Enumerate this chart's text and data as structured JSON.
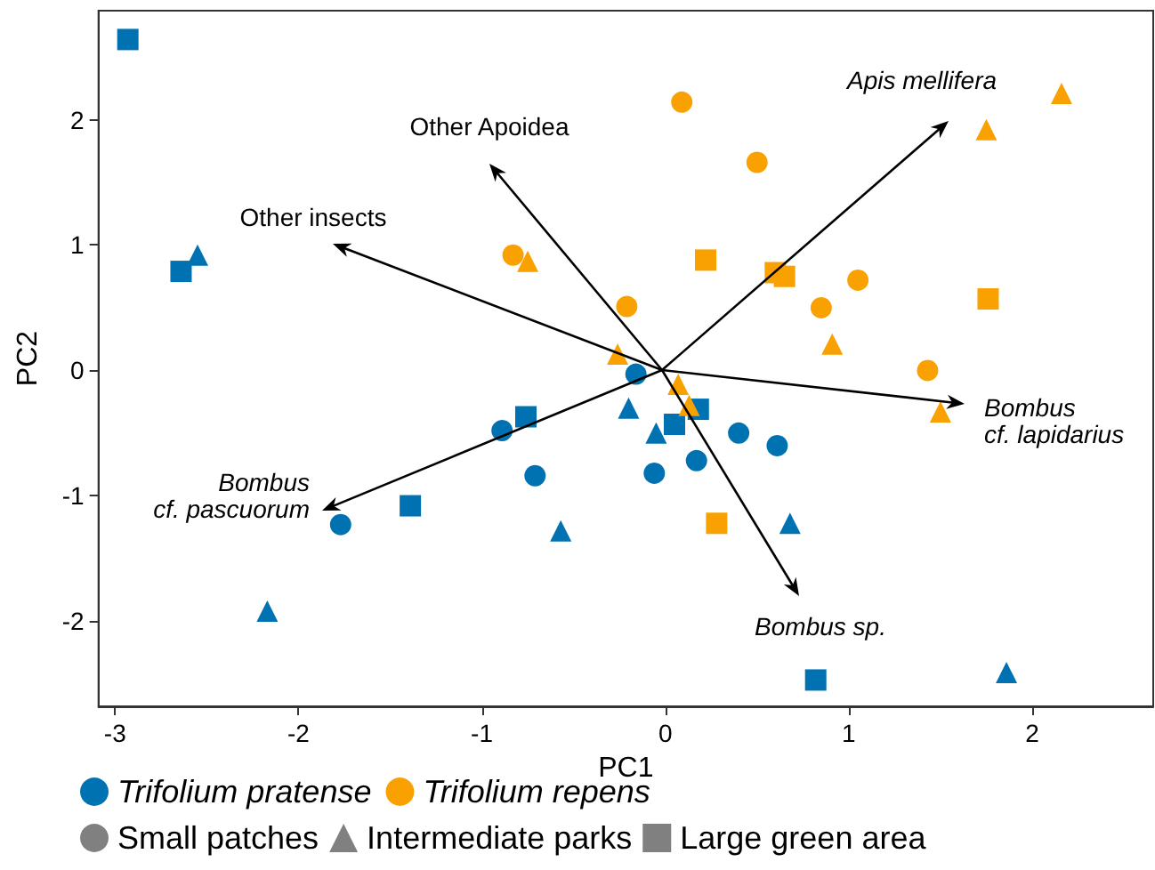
{
  "chart_data": {
    "type": "scatter",
    "xlabel": "PC1",
    "ylabel": "PC2",
    "xlim": [
      -3.09,
      2.66
    ],
    "ylim": [
      -2.68,
      2.87
    ],
    "xticks": [
      -3,
      -2,
      -1,
      0,
      1,
      2
    ],
    "yticks": [
      -2,
      -1,
      0,
      1,
      2
    ],
    "grid": false,
    "legend": "bottom",
    "series": [
      {
        "name": "Trifolium pratense",
        "color": "#0072b2",
        "marker": "circle",
        "x": [
          -0.16,
          -0.89,
          -0.71,
          -1.77,
          -0.06,
          0.4,
          0.61,
          0.17
        ],
        "values": [
          -0.03,
          -0.48,
          -0.84,
          -1.23,
          -0.82,
          -0.5,
          -0.6,
          -0.72
        ]
      },
      {
        "name": "Trifolium repens",
        "color": "#f9a100",
        "marker": "circle",
        "x": [
          -0.83,
          -0.21,
          0.09,
          0.5,
          1.05,
          0.85,
          1.43
        ],
        "values": [
          0.92,
          0.51,
          2.14,
          1.66,
          0.72,
          0.5,
          0.0
        ]
      },
      {
        "color": "#0072b2",
        "marker": "triangle",
        "x": [
          -2.55,
          -0.2,
          -0.57,
          -2.17,
          -0.05,
          0.68,
          1.86
        ],
        "values": [
          0.92,
          -0.3,
          -1.28,
          -1.92,
          -0.5,
          -1.22,
          -2.41
        ]
      },
      {
        "color": "#0072b2",
        "marker": "square",
        "x": [
          -2.93,
          -2.64,
          -0.76,
          -1.39,
          0.05,
          0.18,
          0.82
        ],
        "values": [
          2.64,
          0.79,
          -0.37,
          -1.08,
          -0.43,
          -0.31,
          -2.47
        ]
      },
      {
        "color": "#f9a100",
        "marker": "triangle",
        "x": [
          -0.75,
          -0.26,
          2.16,
          1.75,
          0.91,
          0.07,
          0.13,
          1.5
        ],
        "values": [
          0.87,
          0.13,
          2.21,
          1.92,
          0.21,
          -0.11,
          -0.28,
          -0.33
        ]
      },
      {
        "color": "#f9a100",
        "marker": "square",
        "x": [
          0.22,
          0.6,
          0.65,
          1.76,
          0.28
        ],
        "values": [
          0.88,
          0.78,
          0.75,
          0.57,
          -1.22
        ]
      },
      {
        "name": "Small patches",
        "color": "#808080",
        "marker": "circle"
      },
      {
        "name": "Intermediate parks",
        "color": "#808080",
        "marker": "triangle"
      },
      {
        "name": "Large green area",
        "color": "#808080",
        "marker": "square"
      }
    ],
    "annotations": [
      "Apis mellifera",
      "Other Apoidea",
      "Other insects",
      "Bombus\ncf. lapidarius",
      "Bombus sp.",
      "Bombus\ncf. pascuorum"
    ]
  }
}
